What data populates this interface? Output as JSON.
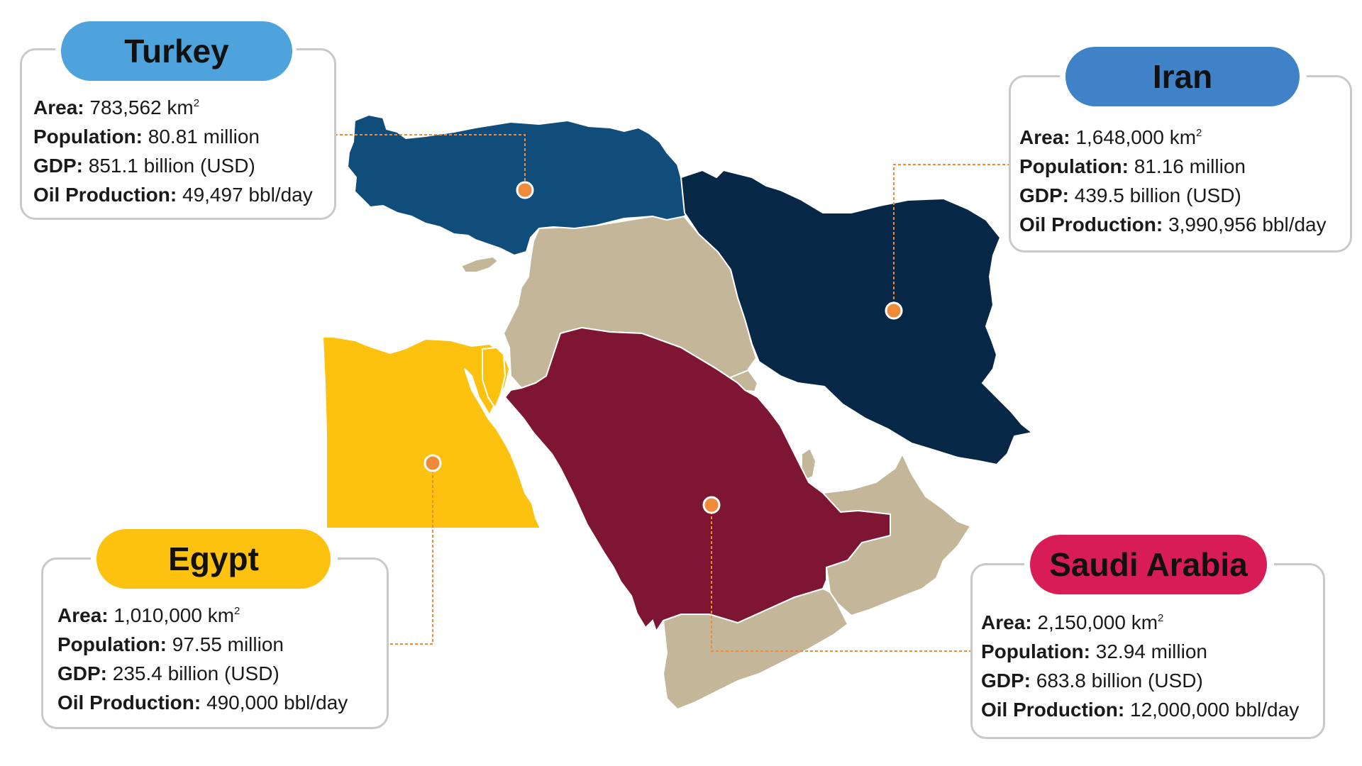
{
  "colors": {
    "turkey": "#104d7b",
    "iran": "#062746",
    "egypt": "#fcc20f",
    "saudi": "#7e1533",
    "neighbors": "#c4b698",
    "connector": "#ef8a3a",
    "turkey_pill": "#4fa3dc",
    "iran_pill": "#3f82c8",
    "egypt_pill": "#fcc20f",
    "saudi_pill": "#d81c55",
    "card_border": "#c9c9c9"
  },
  "labels": {
    "area": "Area:",
    "population": "Population:",
    "gdp": "GDP:",
    "oil": "Oil Production:"
  },
  "countries": {
    "turkey": {
      "name": "Turkey",
      "area": "783,562 km",
      "area_sup": "2",
      "population": "80.81 million",
      "gdp": "851.1 billion (USD)",
      "oil": "49,497 bbl/day"
    },
    "iran": {
      "name": "Iran",
      "area": "1,648,000 km",
      "area_sup": "2",
      "population": "81.16 million",
      "gdp": "439.5 billion (USD)",
      "oil": "3,990,956 bbl/day"
    },
    "egypt": {
      "name": "Egypt",
      "area": "1,010,000 km",
      "area_sup": "2",
      "population": "97.55 million",
      "gdp": "235.4 billion (USD)",
      "oil": "490,000 bbl/day"
    },
    "saudi": {
      "name": "Saudi Arabia",
      "area": "2,150,000 km",
      "area_sup": "2",
      "population": "32.94 million",
      "gdp": "683.8 billion (USD)",
      "oil": "12,000,000 bbl/day"
    }
  }
}
